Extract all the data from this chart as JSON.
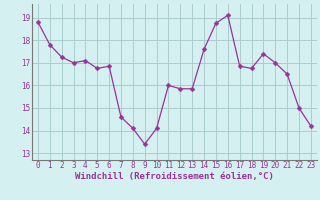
{
  "x": [
    0,
    1,
    2,
    3,
    4,
    5,
    6,
    7,
    8,
    9,
    10,
    11,
    12,
    13,
    14,
    15,
    16,
    17,
    18,
    19,
    20,
    21,
    22,
    23
  ],
  "y": [
    18.8,
    17.8,
    17.25,
    17.0,
    17.1,
    16.75,
    16.85,
    14.6,
    14.1,
    13.4,
    14.1,
    16.0,
    15.85,
    15.85,
    17.6,
    18.75,
    19.1,
    16.85,
    16.75,
    17.4,
    17.0,
    16.5,
    15.0,
    14.2
  ],
  "line_color": "#993399",
  "marker": "D",
  "markersize": 2.5,
  "linewidth": 0.9,
  "xlabel": "Windchill (Refroidissement éolien,°C)",
  "xlabel_fontsize": 6.5,
  "yticks": [
    13,
    14,
    15,
    16,
    17,
    18,
    19
  ],
  "xticks": [
    0,
    1,
    2,
    3,
    4,
    5,
    6,
    7,
    8,
    9,
    10,
    11,
    12,
    13,
    14,
    15,
    16,
    17,
    18,
    19,
    20,
    21,
    22,
    23
  ],
  "ylim": [
    12.7,
    19.6
  ],
  "xlim": [
    -0.5,
    23.5
  ],
  "bg_color": "#d5f0f0",
  "grid_color": "#aacccc",
  "tick_fontsize": 5.5
}
